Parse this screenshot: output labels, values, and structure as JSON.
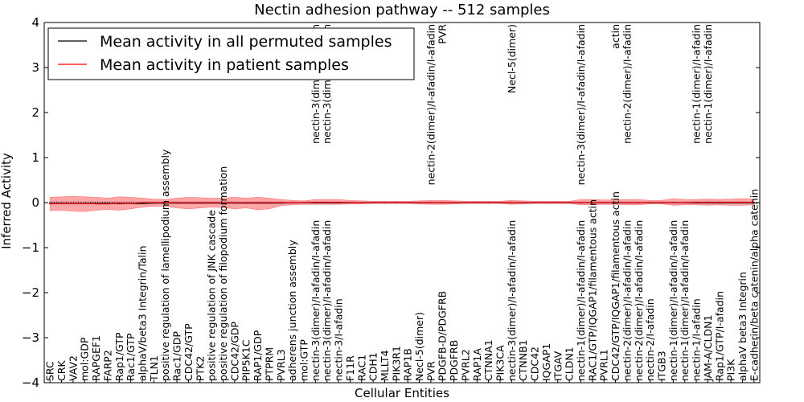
{
  "chart_data": {
    "type": "line",
    "title": "Nectin adhesion pathway -- 512 samples",
    "xlabel": "Cellular Entities",
    "ylabel": "Inferred Activity",
    "ylim": [
      -4,
      4
    ],
    "yticks": [
      -4,
      -3,
      -2,
      -1,
      0,
      1,
      2,
      3,
      4
    ],
    "ytick_labels": [
      "−4",
      "−3",
      "−2",
      "−1",
      "0",
      "1",
      "2",
      "3",
      "4"
    ],
    "grid": false,
    "legend_position": "top-left",
    "series_colors": {
      "permuted": "#000000",
      "patient": "#ff0000",
      "band": "#ff0000",
      "perm_band": "#aab4e6"
    },
    "categories": [
      "SRC",
      "CRK",
      "VAV2",
      "mol:GDP",
      "RAPGEF1",
      "FARP2",
      "Rap1/GTP",
      "Rac1/GTP",
      "alphaV/beta3 Integrin/Talin",
      "TLN1",
      "positive regulation of lamellipodium assembly",
      "Rac1/GDP",
      "CDC42/GTP",
      "PTK2",
      "positive regulation of JNK cascade",
      "positive regulation of filopodium formation",
      "CDC42/GDP",
      "PIP5K1C",
      "RAP1/GDP",
      "PTPRM",
      "PVRL3",
      "adherens junction assembly",
      "mol:GTP",
      "nectin-3(dimer)/I-afadin/I-afadin",
      "nectin-3(dimer)/I-afadin/I-afadin",
      "nectin-3/I-afadin",
      "F11R",
      "RAC1",
      "CDH1",
      "MLLT4",
      "PIK3R1",
      "RAP1B",
      "Necl-5(dimer)",
      "PVR",
      "PDGFB-D/PDGFRB",
      "PDGFRB",
      "PVRL2",
      "RAP1A",
      "CTNNA1",
      "PIK3CA",
      "nectin-3(dimer)/I-afadin/I-afadin",
      "CTNNB1",
      "CDC42",
      "IQGAP1",
      "ITGAV",
      "CLDN1",
      "nectin-1(dimer)/I-afadin/I-afadin",
      "RAC1/GTP/IQGAP1/filamentous actin",
      "PVRL1",
      "CDC42/GTP/IQGAP1/filamentous actin",
      "nectin-2(dimer)/I-afadin/I-afadin",
      "nectin-2(dimer)/I-afadin/I-afadin",
      "nectin-2/I-afadin",
      "ITGB3",
      "nectin-1(dimer)/I-afadin/I-afadin",
      "nectin-1(dimer)/I-afadin/I-afadin",
      "nectin-1/I-afadin",
      "JAM-A/CLDN1",
      "Rap1/GTP/I-afadin",
      "PI3K",
      "alphaV beta3 Integrin",
      "E-cadherin/beta catenin/alpha catenin"
    ],
    "top_labels": [
      {
        "index": 23,
        "text": "nectin-3(dimer)/I-afadin"
      },
      {
        "index": 24,
        "text": "nectin-3(dimer)/I-afadin"
      },
      {
        "index": 33,
        "text": "nectin-2(dimer)/I-afadin/I-afadin"
      },
      {
        "index": 34,
        "text": "PVR"
      },
      {
        "index": 40,
        "text": "Necl-5(dimer)"
      },
      {
        "index": 46,
        "text": "nectin-3(dimer)/I-afadin/I-afadin"
      },
      {
        "index": 49,
        "text": "actin"
      },
      {
        "index": 50,
        "text": "nectin-2(dimer)/I-afadin"
      },
      {
        "index": 56,
        "text": "nectin-1(dimer)/I-afadin"
      },
      {
        "index": 57,
        "text": "nectin-1(dimer)/I-afadin"
      }
    ],
    "series": [
      {
        "name": "Mean activity in all permuted samples",
        "color": "#000000",
        "values": [
          -0.02,
          -0.02,
          -0.02,
          -0.02,
          -0.02,
          -0.02,
          -0.02,
          -0.02,
          -0.02,
          -0.01,
          -0.01,
          -0.01,
          -0.01,
          -0.01,
          -0.01,
          -0.01,
          -0.01,
          -0.01,
          -0.01,
          -0.01,
          -0.01,
          0,
          0,
          0,
          0,
          0,
          0,
          0,
          0,
          0,
          0,
          0,
          0,
          0,
          0,
          0,
          0,
          0,
          0,
          0,
          0,
          0,
          0,
          0,
          0,
          0,
          0,
          0,
          0,
          0,
          0,
          0,
          0,
          0,
          0,
          0,
          0,
          0,
          0,
          0,
          0,
          0
        ]
      },
      {
        "name": "Mean activity in patient samples",
        "color": "#ff0000",
        "values": [
          -0.03,
          -0.02,
          -0.02,
          -0.02,
          -0.03,
          -0.03,
          -0.01,
          -0.02,
          0,
          0,
          0,
          0,
          0,
          0,
          0,
          0,
          0,
          0,
          0,
          0,
          0,
          0,
          0,
          0.01,
          0.01,
          0.01,
          0,
          0,
          0,
          0,
          0,
          0,
          0,
          0,
          0,
          0,
          0,
          0,
          0,
          0,
          0,
          0,
          0,
          0,
          0,
          0,
          0,
          0,
          0,
          0,
          0,
          0,
          0,
          0,
          0,
          0,
          0.01,
          0.01,
          0.01,
          0.01,
          0.01,
          0.01
        ]
      }
    ],
    "band_upper": [
      0.12,
      0.13,
      0.14,
      0.13,
      0.12,
      0.1,
      0.13,
      0.12,
      0.1,
      0.08,
      0.07,
      0.1,
      0.12,
      0.11,
      0.1,
      0.1,
      0.12,
      0.1,
      0.12,
      0.1,
      0.07,
      0.05,
      0.04,
      0.07,
      0.07,
      0.07,
      0.05,
      0.04,
      0.03,
      0.03,
      0.03,
      0.03,
      0.04,
      0.05,
      0.05,
      0.04,
      0.03,
      0.03,
      0.03,
      0.03,
      0.05,
      0.04,
      0.03,
      0.03,
      0.03,
      0.03,
      0.07,
      0.07,
      0.06,
      0.06,
      0.07,
      0.07,
      0.05,
      0.05,
      0.09,
      0.07,
      0.07,
      0.08,
      0.07,
      0.08,
      0.09,
      0.08
    ],
    "band_lower": [
      -0.18,
      -0.17,
      -0.19,
      -0.2,
      -0.17,
      -0.15,
      -0.17,
      -0.14,
      -0.1,
      -0.08,
      -0.08,
      -0.12,
      -0.14,
      -0.12,
      -0.1,
      -0.11,
      -0.14,
      -0.12,
      -0.16,
      -0.14,
      -0.07,
      -0.05,
      -0.04,
      -0.04,
      -0.04,
      -0.04,
      -0.03,
      -0.03,
      -0.02,
      -0.02,
      -0.02,
      -0.02,
      -0.03,
      -0.04,
      -0.04,
      -0.03,
      -0.02,
      -0.02,
      -0.02,
      -0.02,
      -0.04,
      -0.03,
      -0.02,
      -0.02,
      -0.02,
      -0.02,
      -0.05,
      -0.05,
      -0.04,
      -0.04,
      -0.05,
      -0.05,
      -0.03,
      -0.03,
      -0.06,
      -0.05,
      -0.05,
      -0.06,
      -0.05,
      -0.06,
      -0.06,
      -0.05
    ]
  }
}
